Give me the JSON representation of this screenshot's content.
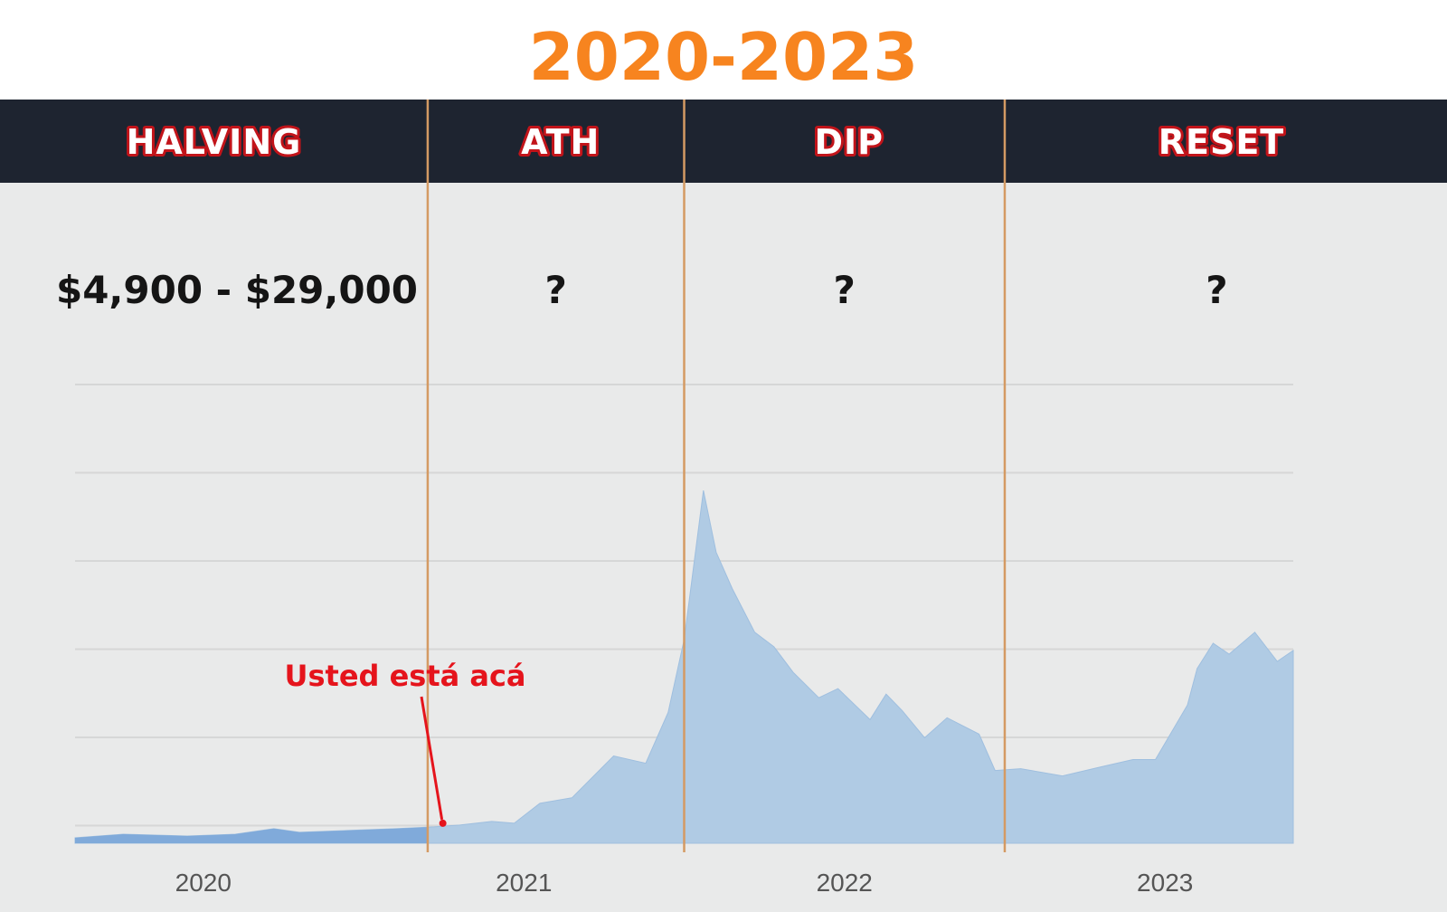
{
  "title": "2020-2023",
  "colors": {
    "title": "#f7841f",
    "header_bg": "#1e2430",
    "plot_bg": "#e9eaea",
    "area_fill": "#b0cbe4",
    "area_fill_past": "#78a4d8",
    "divider": "#d49a63",
    "annotation": "#e5141c"
  },
  "phases": [
    {
      "name": "HALVING",
      "range": "$4,900 - $29,000"
    },
    {
      "name": "ATH",
      "range": "?"
    },
    {
      "name": "DIP",
      "range": "?"
    },
    {
      "name": "RESET",
      "range": "?"
    }
  ],
  "annotation": {
    "text": "Usted está acá",
    "x": 2020.75
  },
  "chart_data": {
    "type": "area",
    "title": "2020-2023",
    "xlabel": "",
    "ylabel": "",
    "grid": true,
    "ylim": [
      0,
      100
    ],
    "xlim": [
      2019.6,
      2023.4
    ],
    "x_ticks": [
      {
        "label": "2020",
        "x": 2020.0
      },
      {
        "label": "2021",
        "x": 2021.0
      },
      {
        "label": "2022",
        "x": 2022.0
      },
      {
        "label": "2023",
        "x": 2023.0
      }
    ],
    "phase_boundaries": [
      2020.7,
      2021.5,
      2022.5
    ],
    "series": [
      {
        "x": [
          2019.6,
          2019.75,
          2019.95,
          2020.1,
          2020.22,
          2020.3,
          2020.45,
          2020.6,
          2020.72,
          2020.8,
          2020.9,
          2020.97,
          2021.05,
          2021.15,
          2021.28,
          2021.38,
          2021.45,
          2021.5,
          2021.56,
          2021.6,
          2021.65,
          2021.72,
          2021.78,
          2021.84,
          2021.92,
          2021.98,
          2022.08,
          2022.13,
          2022.18,
          2022.25,
          2022.32,
          2022.42,
          2022.47,
          2022.55,
          2022.68,
          2022.8,
          2022.9,
          2022.97,
          2023.07,
          2023.1,
          2023.15,
          2023.2,
          2023.28,
          2023.35,
          2023.4
        ],
        "y": [
          1.5,
          2.5,
          2.0,
          2.5,
          4.0,
          3.0,
          3.5,
          4.0,
          4.5,
          5.0,
          6.0,
          5.5,
          11.0,
          12.5,
          24.0,
          22.0,
          36.0,
          56.0,
          97.0,
          80.0,
          70.0,
          58.0,
          54.0,
          47.0,
          40.0,
          42.5,
          34.0,
          41.0,
          36.5,
          29.0,
          34.5,
          30.0,
          20.0,
          20.5,
          18.5,
          21.0,
          23.0,
          23.0,
          38.0,
          48.0,
          55.0,
          52.0,
          58.0,
          50.0,
          53.0
        ]
      }
    ]
  }
}
